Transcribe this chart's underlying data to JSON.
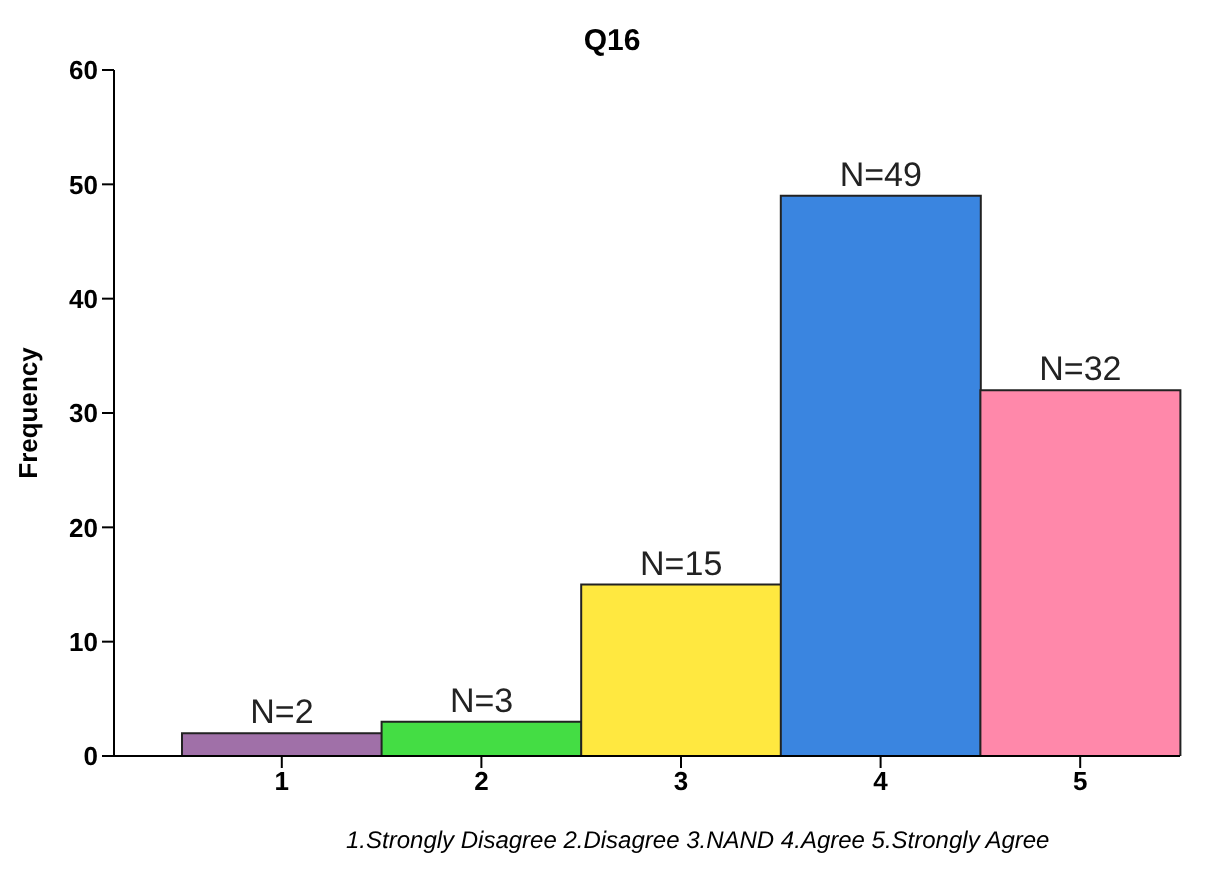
{
  "chart_data": {
    "type": "bar",
    "title": "Q16",
    "ylabel": "Frequency",
    "categories": [
      "1",
      "2",
      "3",
      "4",
      "5"
    ],
    "values": [
      2,
      3,
      15,
      49,
      32
    ],
    "colors": [
      "#a070a8",
      "#44dd44",
      "#ffe840",
      "#3a85e0",
      "#ff88aa"
    ],
    "value_labels": [
      "N=2",
      "N=3",
      "N=15",
      "N=49",
      "N=32"
    ],
    "ylim": [
      0,
      60
    ],
    "yticks": [
      0,
      10,
      20,
      30,
      40,
      50,
      60
    ],
    "annotations": [
      "1.Strongly Disagree 2.Disagree 3.NAND 4.Agree 5.Strongly Agree"
    ]
  }
}
